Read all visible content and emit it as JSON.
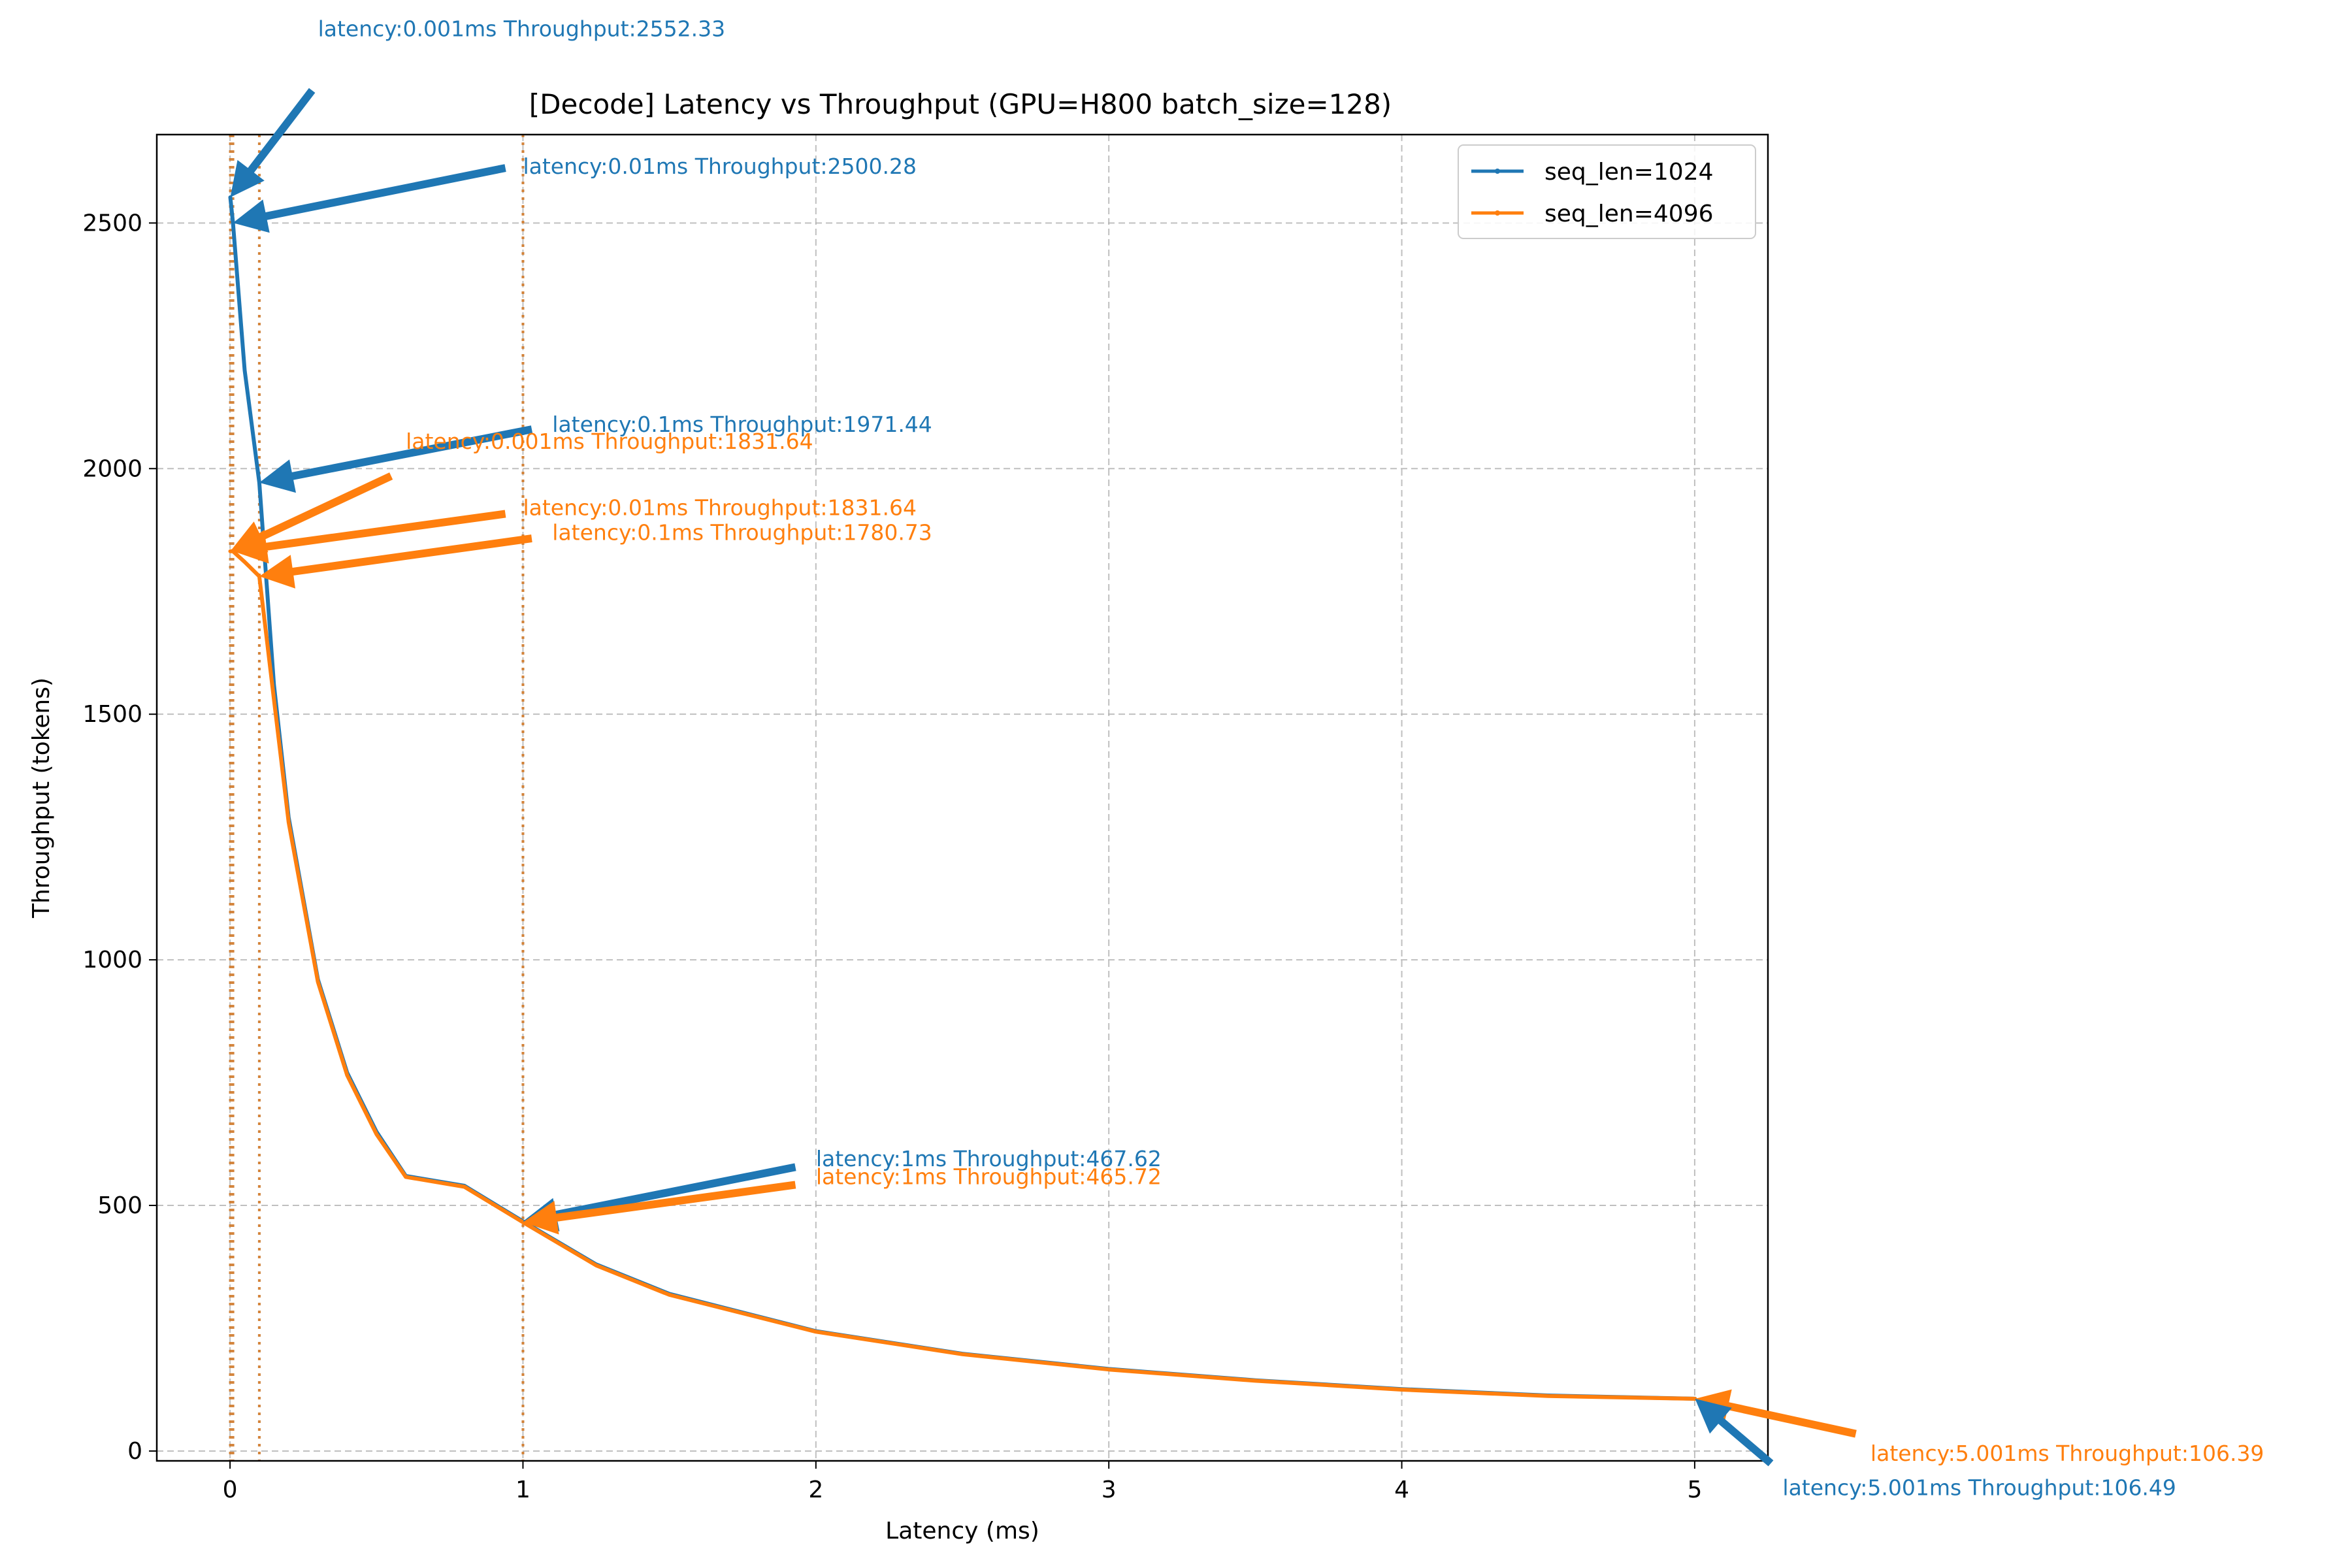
{
  "chart_data": {
    "type": "line",
    "title": "[Decode] Latency vs Throughput (GPU=H800 batch_size=128)",
    "xlabel": "Latency (ms)",
    "ylabel": "Throughput (tokens)",
    "xlim": [
      -0.25,
      5.25
    ],
    "ylim": [
      -20,
      2680
    ],
    "xticks": [
      0,
      1,
      2,
      3,
      4,
      5
    ],
    "yticks": [
      0,
      500,
      1000,
      1500,
      2000,
      2500
    ],
    "grid": true,
    "legend_position": "top-right",
    "series": [
      {
        "name": "seq_len=1024",
        "color": "#1f77b4",
        "x": [
          0.001,
          0.01,
          0.05,
          0.1,
          0.15,
          0.2,
          0.3,
          0.4,
          0.5,
          0.6,
          0.8,
          1.0,
          1.25,
          1.5,
          2.0,
          2.5,
          3.0,
          3.5,
          4.0,
          4.5,
          5.001
        ],
        "y": [
          2552.33,
          2500.28,
          2200,
          1971.44,
          1560,
          1290,
          960,
          770,
          650,
          560,
          540,
          467.62,
          380,
          320,
          244,
          198,
          167,
          144,
          126,
          113,
          106.49
        ]
      },
      {
        "name": "seq_len=4096",
        "color": "#ff7f0e",
        "x": [
          0.001,
          0.01,
          0.05,
          0.1,
          0.15,
          0.2,
          0.3,
          0.4,
          0.5,
          0.6,
          0.8,
          1.0,
          1.25,
          1.5,
          2.0,
          2.5,
          3.0,
          3.5,
          4.0,
          4.5,
          5.001
        ],
        "y": [
          1831.64,
          1831.64,
          1810,
          1780.73,
          1530,
          1280,
          955,
          765,
          645,
          558,
          538,
          465.72,
          378,
          318,
          243,
          197,
          166,
          143,
          125,
          112,
          106.39
        ]
      }
    ],
    "vlines": [
      {
        "x": 0.001,
        "color": "#1f77b4"
      },
      {
        "x": 0.01,
        "color": "#1f77b4"
      },
      {
        "x": 0.1,
        "color": "#1f77b4"
      },
      {
        "x": 1.0,
        "color": "#1f77b4"
      },
      {
        "x": 0.001,
        "color": "#ff7f0e"
      },
      {
        "x": 0.01,
        "color": "#ff7f0e"
      },
      {
        "x": 0.1,
        "color": "#ff7f0e"
      },
      {
        "x": 1.0,
        "color": "#ff7f0e"
      }
    ],
    "annotations": [
      {
        "text": "latency:0.001ms Throughput:2552.33",
        "series": 0,
        "x": 0.001,
        "y": 2552.33,
        "text_x": 0.3,
        "text_y": 2880,
        "tail_x": 0.28,
        "tail_y": 2770
      },
      {
        "text": "latency:0.01ms Throughput:2500.28",
        "series": 0,
        "x": 0.01,
        "y": 2500.28,
        "text_x": 1.0,
        "text_y": 2600,
        "tail_x": 0.94,
        "tail_y": 2612
      },
      {
        "text": "latency:0.1ms Throughput:1971.44",
        "series": 0,
        "x": 0.1,
        "y": 1971.44,
        "text_x": 1.1,
        "text_y": 2075,
        "tail_x": 1.03,
        "tail_y": 2080
      },
      {
        "text": "latency:0.001ms Throughput:1831.64",
        "series": 1,
        "x": 0.001,
        "y": 1831.64,
        "text_x": 0.6,
        "text_y": 2040,
        "tail_x": 0.55,
        "tail_y": 1985
      },
      {
        "text": "latency:0.01ms Throughput:1831.64",
        "series": 1,
        "x": 0.01,
        "y": 1831.64,
        "text_x": 1.0,
        "text_y": 1905,
        "tail_x": 0.94,
        "tail_y": 1908
      },
      {
        "text": "latency:0.1ms Throughput:1780.73",
        "series": 1,
        "x": 0.1,
        "y": 1780.73,
        "text_x": 1.1,
        "text_y": 1855,
        "tail_x": 1.03,
        "tail_y": 1858
      },
      {
        "text": "latency:1ms Throughput:467.62",
        "series": 0,
        "x": 1.0,
        "y": 467.62,
        "text_x": 2.0,
        "text_y": 580,
        "tail_x": 1.93,
        "tail_y": 578
      },
      {
        "text": "latency:1ms Throughput:465.72",
        "series": 1,
        "x": 1.0,
        "y": 465.72,
        "text_x": 2.0,
        "text_y": 543,
        "tail_x": 1.93,
        "tail_y": 542
      },
      {
        "text": "latency:5.001ms Throughput:106.39",
        "series": 1,
        "x": 5.001,
        "y": 106.39,
        "text_x": 5.6,
        "text_y": -20,
        "tail_x": 5.55,
        "tail_y": 35
      },
      {
        "text": "latency:5.001ms Throughput:106.49",
        "series": 0,
        "x": 5.001,
        "y": 106.49,
        "text_x": 5.3,
        "text_y": -90,
        "tail_x": 5.26,
        "tail_y": -25
      }
    ]
  }
}
